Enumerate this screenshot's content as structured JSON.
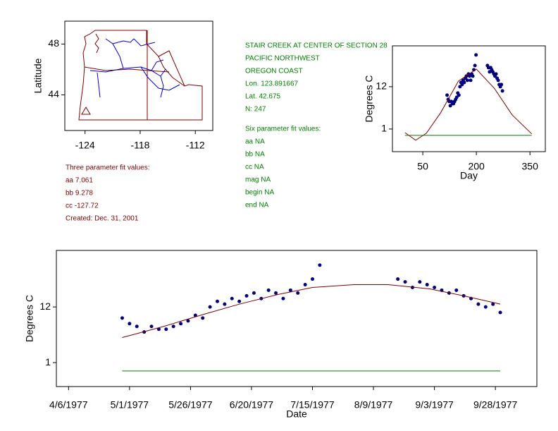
{
  "chart_data": [
    {
      "type": "map",
      "ylabel": "Latitude",
      "xlim": [
        -126.2,
        -110.1
      ],
      "ylim": [
        41.2,
        49.8
      ],
      "xticks": [
        -124,
        -118,
        -112
      ],
      "yticks": [
        44,
        48
      ],
      "series": [
        {
          "mode": "markers",
          "marker": "triangle",
          "color": "#800000",
          "x": [
            -123.9
          ],
          "values": [
            42.7
          ]
        }
      ]
    },
    {
      "type": "scatter",
      "xlabel": "Day",
      "ylabel": "Degrees C",
      "xlim": [
        -35,
        393
      ],
      "ylim": [
        8.93,
        13.93
      ],
      "xticks": [
        50,
        200,
        350
      ],
      "yticks": [
        {
          "value": 10,
          "label": "1"
        },
        12
      ],
      "series": [
        {
          "mode": "markers",
          "color": "#000080",
          "x": [
            118,
            121,
            124,
            127,
            130,
            133,
            136,
            139,
            142,
            145,
            148,
            151,
            154,
            157,
            160,
            163,
            166,
            169,
            172,
            175,
            178,
            181,
            184,
            187,
            190,
            193,
            196,
            199,
            231,
            234,
            237,
            240,
            243,
            246,
            249,
            252,
            255,
            258,
            261,
            264,
            267,
            270,
            273
          ],
          "values": [
            11.6,
            11.4,
            11.3,
            11.1,
            11.3,
            11.2,
            11.2,
            11.3,
            11.4,
            11.5,
            11.7,
            11.6,
            12.0,
            12.2,
            12.1,
            12.3,
            12.2,
            12.4,
            12.5,
            12.3,
            12.6,
            12.5,
            12.3,
            12.6,
            12.5,
            12.8,
            13.0,
            13.5,
            13.0,
            12.9,
            12.7,
            12.9,
            12.8,
            12.7,
            12.6,
            12.5,
            12.6,
            12.4,
            12.3,
            12.1,
            12.0,
            12.1,
            11.8
          ]
        },
        {
          "mode": "line",
          "color": "#800000",
          "x": [
            0,
            30,
            60,
            100,
            150,
            200,
            250,
            300,
            355
          ],
          "values": [
            9.83,
            9.47,
            9.8,
            10.77,
            12.27,
            12.83,
            11.93,
            10.67,
            9.77
          ]
        },
        {
          "mode": "line",
          "color": "#008000",
          "x": [
            0,
            355
          ],
          "values": [
            9.7,
            9.7
          ]
        }
      ]
    },
    {
      "type": "scatter",
      "xlabel": "Date",
      "ylabel": "Degrees C",
      "xlim": [
        "4/1/1977",
        "10/15/1977"
      ],
      "ylim": [
        9.14,
        14.03
      ],
      "xticks": [
        "4/6/1977",
        "5/1/1977",
        "5/26/1977",
        "6/20/1977",
        "7/15/1977",
        "8/9/1977",
        "9/3/1977",
        "9/28/1977"
      ],
      "yticks": [
        {
          "value": 10,
          "label": "1"
        },
        12
      ],
      "series": [
        {
          "mode": "markers",
          "color": "#000080",
          "x": [
            "4/28/1977",
            "5/1/1977",
            "5/4/1977",
            "5/7/1977",
            "5/10/1977",
            "5/13/1977",
            "5/16/1977",
            "5/19/1977",
            "5/22/1977",
            "5/25/1977",
            "5/28/1977",
            "5/31/1977",
            "6/3/1977",
            "6/6/1977",
            "6/9/1977",
            "6/12/1977",
            "6/15/1977",
            "6/18/1977",
            "6/21/1977",
            "6/24/1977",
            "6/27/1977",
            "6/30/1977",
            "7/3/1977",
            "7/6/1977",
            "7/9/1977",
            "7/12/1977",
            "7/15/1977",
            "7/18/1977",
            "8/19/1977",
            "8/22/1977",
            "8/25/1977",
            "8/28/1977",
            "8/31/1977",
            "9/3/1977",
            "9/6/1977",
            "9/9/1977",
            "9/12/1977",
            "9/15/1977",
            "9/18/1977",
            "9/21/1977",
            "9/24/1977",
            "9/27/1977",
            "9/30/1977"
          ],
          "values": [
            11.6,
            11.4,
            11.3,
            11.1,
            11.3,
            11.2,
            11.2,
            11.3,
            11.4,
            11.5,
            11.7,
            11.6,
            12.0,
            12.2,
            12.1,
            12.3,
            12.2,
            12.4,
            12.5,
            12.3,
            12.6,
            12.5,
            12.3,
            12.6,
            12.5,
            12.8,
            13.0,
            13.5,
            13.0,
            12.9,
            12.7,
            12.9,
            12.8,
            12.7,
            12.6,
            12.5,
            12.6,
            12.4,
            12.3,
            12.1,
            12.0,
            12.1,
            11.8
          ]
        },
        {
          "mode": "line",
          "color": "#800000",
          "x": [
            "4/28/1977",
            "5/15/1977",
            "6/1/1977",
            "6/15/1977",
            "7/1/1977",
            "7/15/1977",
            "8/1/1977",
            "8/15/1977",
            "9/1/1977",
            "9/15/1977",
            "9/30/1977"
          ],
          "values": [
            10.9,
            11.3,
            11.75,
            12.1,
            12.45,
            12.7,
            12.8,
            12.8,
            12.65,
            12.4,
            12.1
          ]
        },
        {
          "mode": "line",
          "color": "#008000",
          "x": [
            "4/28/1977",
            "9/30/1977"
          ],
          "values": [
            9.7,
            9.7
          ]
        }
      ]
    }
  ],
  "info": {
    "fit3": [
      "Three parameter fit values:",
      "aa 7.061",
      "bb 9.278",
      "cc -127.72",
      "Created:   Dec. 31, 2001"
    ],
    "station": [
      "STAIR CREEK AT CENTER OF SECTION 28",
      "PACIFIC NORTHWEST",
      "OREGON COAST",
      "Lon. 123.891667",
      "Lat. 42.675",
      "N: 247"
    ],
    "fit6": [
      "Six parameter fit values:",
      "aa NA",
      "bb NA",
      "cc NA",
      "mag NA",
      "begin NA",
      "end NA"
    ]
  }
}
